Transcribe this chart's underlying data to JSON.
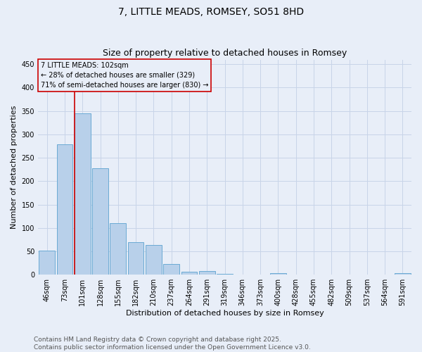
{
  "title": "7, LITTLE MEADS, ROMSEY, SO51 8HD",
  "subtitle": "Size of property relative to detached houses in Romsey",
  "xlabel": "Distribution of detached houses by size in Romsey",
  "ylabel": "Number of detached properties",
  "bar_labels": [
    "46sqm",
    "73sqm",
    "101sqm",
    "128sqm",
    "155sqm",
    "182sqm",
    "210sqm",
    "237sqm",
    "264sqm",
    "291sqm",
    "319sqm",
    "346sqm",
    "373sqm",
    "400sqm",
    "428sqm",
    "455sqm",
    "482sqm",
    "509sqm",
    "537sqm",
    "564sqm",
    "591sqm"
  ],
  "bar_values": [
    51,
    278,
    345,
    228,
    110,
    70,
    63,
    23,
    6,
    8,
    2,
    0,
    0,
    3,
    0,
    0,
    0,
    0,
    0,
    0,
    3
  ],
  "bar_color": "#b8d0ea",
  "bar_edge_color": "#6aaad4",
  "marker_index": 2,
  "marker_label": "7 LITTLE MEADS: 102sqm\n← 28% of detached houses are smaller (329)\n71% of semi-detached houses are larger (830) →",
  "vline_color": "#cc0000",
  "ylim": [
    0,
    460
  ],
  "yticks": [
    0,
    50,
    100,
    150,
    200,
    250,
    300,
    350,
    400,
    450
  ],
  "grid_color": "#c8d4e8",
  "bg_color": "#e8eef8",
  "footer_line1": "Contains HM Land Registry data © Crown copyright and database right 2025.",
  "footer_line2": "Contains public sector information licensed under the Open Government Licence v3.0.",
  "title_fontsize": 10,
  "label_fontsize": 8,
  "tick_fontsize": 7,
  "annotation_fontsize": 7,
  "footer_fontsize": 6.5
}
